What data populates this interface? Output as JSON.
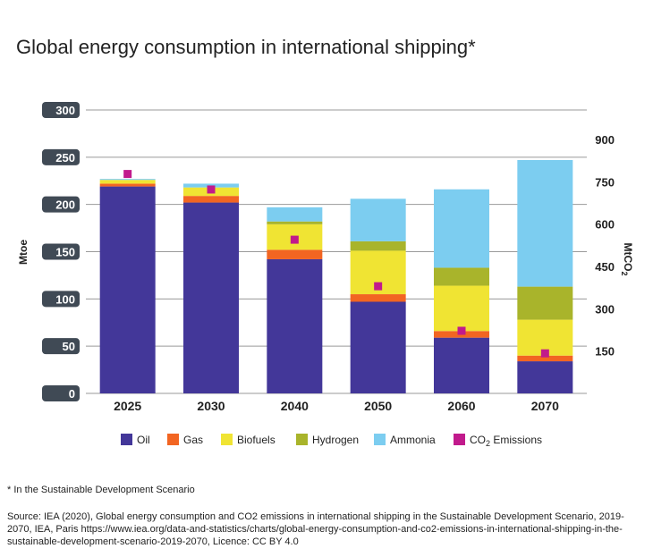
{
  "title": "Global energy consumption in international shipping*",
  "footnote": "* In the Sustainable Development Scenario",
  "source": "Source: IEA (2020), Global energy consumption and CO2 emissions in international shipping in the Sustainable Development Scenario, 2019-2070, IEA, Paris https://www.iea.org/data-and-statistics/charts/global-energy-consumption-and-co2-emissions-in-international-shipping-in-the-sustainable-development-scenario-2019-2070, Licence: CC BY 4.0",
  "chart_data": {
    "type": "bar",
    "stacked": true,
    "categories": [
      "2025",
      "2030",
      "2040",
      "2050",
      "2060",
      "2070"
    ],
    "ylabel": "Mtoe",
    "y2label": "MtCO2",
    "ylim": [
      0,
      300
    ],
    "yticks": [
      "0",
      "50",
      "100",
      "150",
      "200",
      "250",
      "300"
    ],
    "y2lim": [
      0,
      1005
    ],
    "y2ticks": [
      "150",
      "300",
      "450",
      "600",
      "750",
      "900"
    ],
    "grid": true,
    "legend_position": "bottom",
    "series": [
      {
        "name": "Oil",
        "color": "#433799",
        "values": [
          219,
          202,
          142,
          97,
          59,
          34
        ]
      },
      {
        "name": "Gas",
        "color": "#f26522",
        "values": [
          3,
          7,
          10,
          8,
          7,
          6
        ]
      },
      {
        "name": "Biofuels",
        "color": "#f0e433",
        "values": [
          4,
          9,
          27,
          46,
          48,
          38
        ]
      },
      {
        "name": "Hydrogen",
        "color": "#a9b42b",
        "values": [
          0,
          0,
          3,
          10,
          19,
          35
        ]
      },
      {
        "name": "Ammonia",
        "color": "#7ccdf0",
        "values": [
          1,
          4,
          15,
          45,
          83,
          134
        ]
      }
    ],
    "emissions": {
      "name": "CO2 Emissions",
      "color": "#c11a8c",
      "values": [
        778,
        723,
        545,
        380,
        222,
        142
      ]
    }
  }
}
